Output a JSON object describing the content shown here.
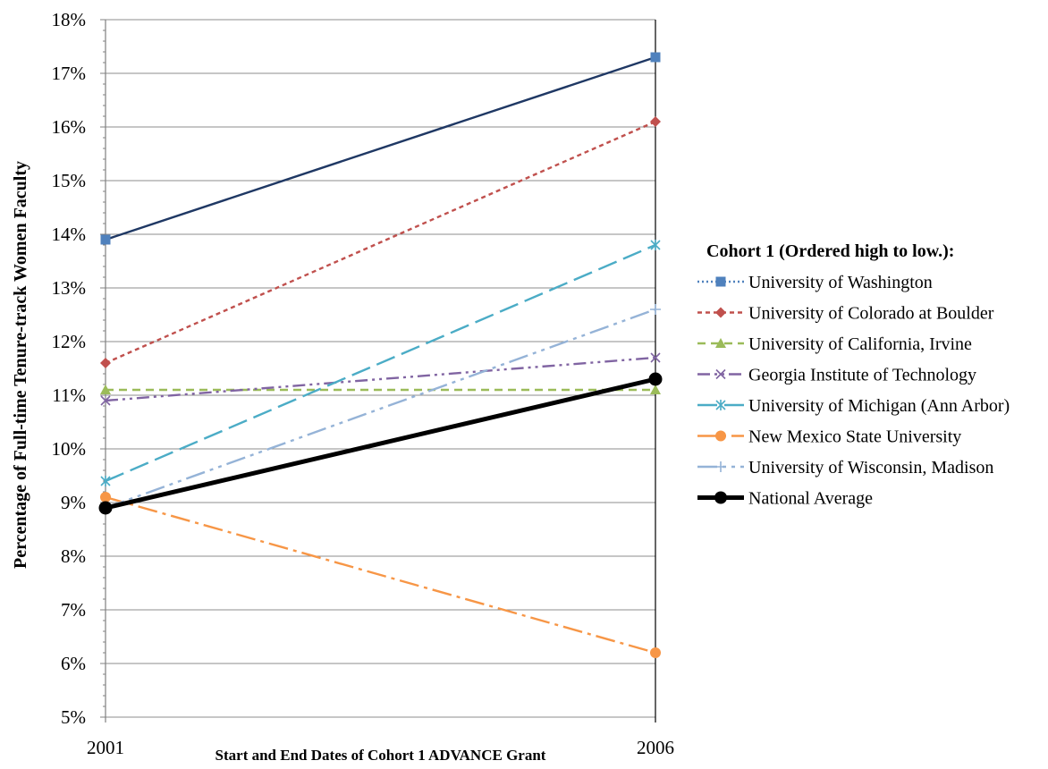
{
  "chart_data": {
    "type": "line",
    "xlabel": "Start and End Dates of Cohort 1 ADVANCE Grant",
    "ylabel": "Percentage of Full-time  Tenure-track Women Faculty",
    "categories": [
      "2001",
      "2006"
    ],
    "ylim": [
      5,
      18
    ],
    "yticks": [
      5,
      6,
      7,
      8,
      9,
      10,
      11,
      12,
      13,
      14,
      15,
      16,
      17,
      18
    ],
    "ytick_labels": [
      "5%",
      "6%",
      "7%",
      "8%",
      "9%",
      "10%",
      "11%",
      "12%",
      "13%",
      "14%",
      "15%",
      "16%",
      "17%",
      "18%"
    ],
    "grid": true,
    "legend_title": "Cohort 1 (Ordered  high to low.):",
    "legend_position": "right",
    "series": [
      {
        "name": "University of Washington",
        "values": [
          13.9,
          17.3
        ],
        "color": "#4F81BD",
        "line_color": "#1F3864",
        "marker": "square",
        "dash": "solid",
        "legend_dash": "2,3"
      },
      {
        "name": "University of Colorado at Boulder",
        "values": [
          11.6,
          16.1
        ],
        "color": "#C0504D",
        "marker": "diamond",
        "dash": "5,4"
      },
      {
        "name": "University of California, Irvine",
        "values": [
          11.1,
          11.1
        ],
        "color": "#9BBB59",
        "marker": "triangle",
        "dash": "9,6"
      },
      {
        "name": "Georgia Institute of Technology",
        "values": [
          10.9,
          11.7
        ],
        "color": "#8064A2",
        "marker": "x",
        "dash": "14,5,3,5,3,5"
      },
      {
        "name": "University of Michigan (Ann Arbor)",
        "values": [
          9.4,
          13.8
        ],
        "color": "#4BACC6",
        "marker": "star",
        "dash": "22,8"
      },
      {
        "name": "New Mexico State University",
        "values": [
          9.1,
          6.2
        ],
        "color": "#F79646",
        "marker": "circle",
        "dash": "22,6,4,6"
      },
      {
        "name": "University of Wisconsin, Madison",
        "values": [
          8.9,
          12.6
        ],
        "color": "#95B3D7",
        "marker": "plus",
        "dash": "22,6,4,6,4,6"
      },
      {
        "name": "National Average",
        "values": [
          8.9,
          11.3
        ],
        "color": "#000000",
        "marker": "circle",
        "dash": "solid",
        "bold": true
      }
    ]
  }
}
